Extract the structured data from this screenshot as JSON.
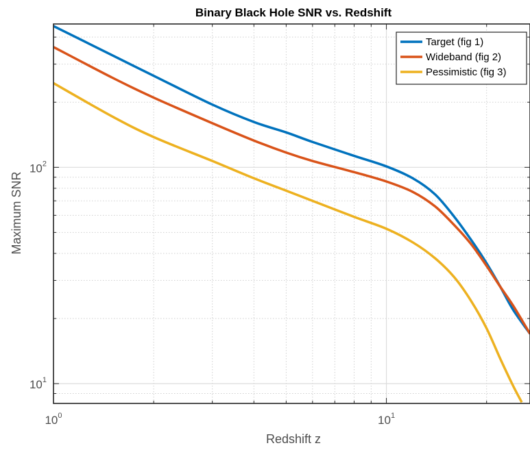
{
  "chart_data": {
    "type": "line",
    "title": "Binary Black Hole SNR vs. Redshift",
    "xlabel": "Redshift z",
    "ylabel": "Maximum SNR",
    "xscale": "log",
    "yscale": "log",
    "xlim": [
      1,
      27
    ],
    "ylim": [
      8.1,
      460
    ],
    "x_ticks": [
      {
        "base": "10",
        "exp": "0",
        "value": 1
      },
      {
        "base": "10",
        "exp": "1",
        "value": 10
      }
    ],
    "y_ticks": [
      {
        "base": "10",
        "exp": "1",
        "value": 10
      },
      {
        "base": "10",
        "exp": "2",
        "value": 100
      }
    ],
    "grid": true,
    "minor_grid": true,
    "legend_position": "top-right",
    "series": [
      {
        "name": "Target (fig 1)",
        "color": "#0072BD",
        "x": [
          1,
          1.5,
          2,
          3,
          4,
          5,
          6,
          8,
          10,
          12,
          14,
          16,
          18,
          20,
          22,
          24,
          27
        ],
        "y": [
          450,
          330,
          265,
          195,
          162,
          145,
          131,
          113,
          101,
          89,
          75,
          59,
          46,
          36,
          28,
          22,
          17
        ]
      },
      {
        "name": "Wideband (fig 2)",
        "color": "#D95319",
        "x": [
          1,
          1.5,
          2,
          3,
          4,
          5,
          6,
          8,
          10,
          12,
          14,
          16,
          18,
          20,
          22,
          24,
          27
        ],
        "y": [
          360,
          260,
          210,
          160,
          133,
          117,
          107,
          95,
          86,
          77,
          66,
          54,
          44,
          35,
          28,
          23,
          17
        ]
      },
      {
        "name": "Pessimistic (fig 3)",
        "color": "#EDB120",
        "x": [
          1,
          1.5,
          2,
          3,
          4,
          5,
          6,
          8,
          10,
          12,
          14,
          16,
          18,
          20,
          22,
          24,
          25.5
        ],
        "y": [
          245,
          172,
          138,
          107,
          89,
          78,
          70,
          59,
          52,
          45,
          38,
          31,
          24,
          18,
          13,
          9.8,
          8.2
        ]
      }
    ]
  }
}
